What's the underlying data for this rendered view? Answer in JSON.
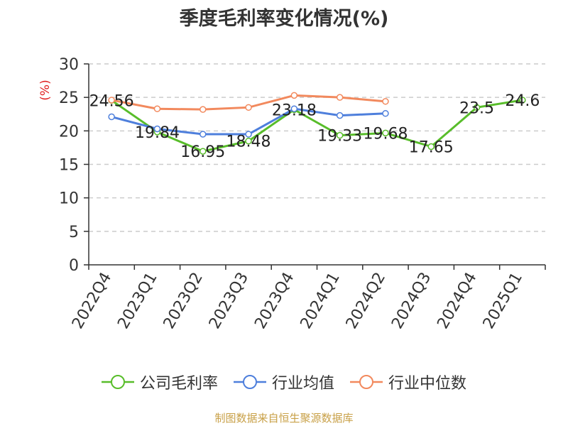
{
  "chart_data": {
    "type": "line",
    "title": "季度毛利率变化情况(%)",
    "ylabel": "(%)",
    "xlabel": "",
    "ylim": [
      0,
      30
    ],
    "yticks": [
      0,
      5,
      10,
      15,
      20,
      25,
      30
    ],
    "categories": [
      "2022Q4",
      "2023Q1",
      "2023Q2",
      "2023Q3",
      "2023Q4",
      "2024Q1",
      "2024Q2",
      "2024Q3",
      "2024Q4",
      "2025Q1"
    ],
    "grid": "horizontal-dashed",
    "legend_position": "bottom",
    "series": [
      {
        "name": "公司毛利率",
        "color": "#58bd2a",
        "values": [
          24.56,
          19.84,
          16.95,
          18.48,
          23.18,
          19.33,
          19.68,
          17.65,
          23.5,
          24.6
        ],
        "labels": [
          "24.56",
          "19.84",
          "16.95",
          "18.48",
          "23.18",
          "19.33",
          "19.68",
          "17.65",
          "23.5",
          "24.6"
        ]
      },
      {
        "name": "行业均值",
        "color": "#4e7fdc",
        "values": [
          22.1,
          20.3,
          19.5,
          19.5,
          23.3,
          22.3,
          22.6,
          null,
          null,
          null
        ]
      },
      {
        "name": "行业中位数",
        "color": "#f2895d",
        "values": [
          24.6,
          23.3,
          23.2,
          23.5,
          25.3,
          25.0,
          24.4,
          null,
          null,
          null
        ]
      }
    ]
  },
  "source": "制图数据来自恒生聚源数据库"
}
